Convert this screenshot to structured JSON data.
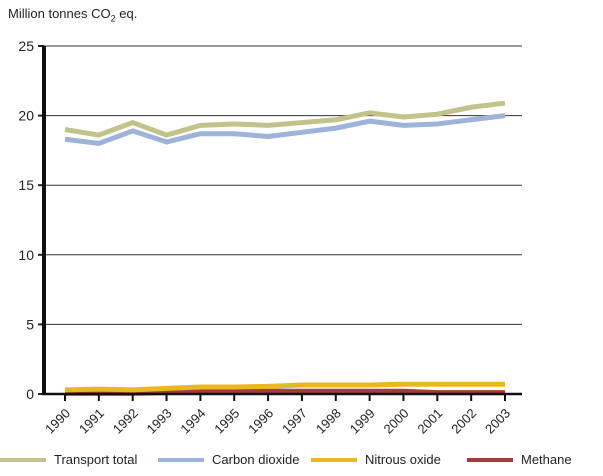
{
  "chart_data": {
    "type": "line",
    "ylabel_main": "Million tonnes CO",
    "ylabel_sub": "2",
    "ylabel_tail": " eq.",
    "x": [
      "1990",
      "1991",
      "1992",
      "1993",
      "1994",
      "1995",
      "1996",
      "1997",
      "1998",
      "1999",
      "2000",
      "2001",
      "2002",
      "2003"
    ],
    "ylim": [
      0,
      25
    ],
    "yticks": [
      "0",
      "5",
      "10",
      "15",
      "20",
      "25"
    ],
    "grid": true,
    "legend_position": "bottom",
    "series": [
      {
        "name": "Transport total",
        "color": "#c2c28b",
        "values": [
          19.0,
          18.6,
          19.5,
          18.6,
          19.3,
          19.4,
          19.3,
          19.5,
          19.7,
          20.2,
          19.9,
          20.1,
          20.6,
          20.9
        ]
      },
      {
        "name": "Carbon dioxide",
        "color": "#9eb3d8",
        "values": [
          18.3,
          18.0,
          18.9,
          18.1,
          18.7,
          18.7,
          18.5,
          18.8,
          19.1,
          19.6,
          19.3,
          19.4,
          19.7,
          20.0
        ]
      },
      {
        "name": "Nitrous oxide",
        "color": "#e8b820",
        "values": [
          0.3,
          0.35,
          0.3,
          0.4,
          0.5,
          0.5,
          0.55,
          0.65,
          0.65,
          0.65,
          0.7,
          0.7,
          0.7,
          0.7
        ]
      },
      {
        "name": "Methane",
        "color": "#a63a3a",
        "values": [
          0.05,
          0.05,
          0.05,
          0.1,
          0.2,
          0.2,
          0.2,
          0.2,
          0.2,
          0.2,
          0.2,
          0.1,
          0.1,
          0.1
        ]
      }
    ]
  }
}
